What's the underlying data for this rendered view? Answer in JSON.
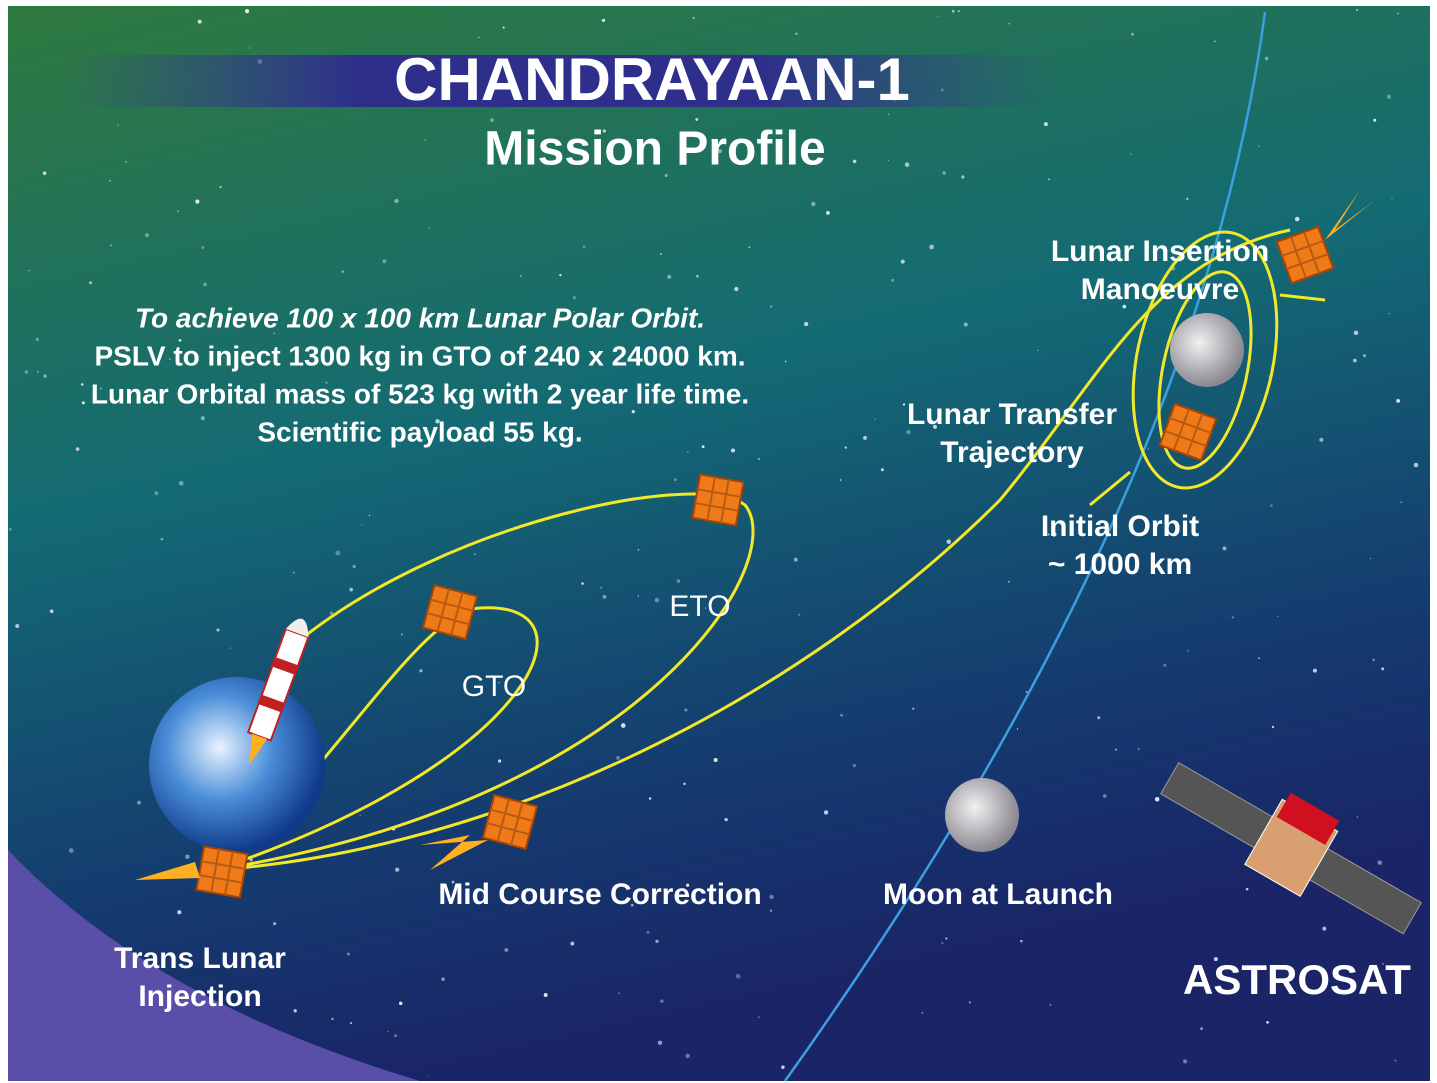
{
  "header": {
    "title": "CHANDRAYAAN-1",
    "subtitle": "Mission Profile"
  },
  "summary": [
    "To achieve 100 x 100 km Lunar Polar Orbit.",
    "PSLV to inject 1300 kg in GTO of 240 x 24000 km.",
    "Lunar Orbital mass of 523 kg with 2 year life time.",
    "Scientific payload  55 kg."
  ],
  "labels": {
    "lunar_insertion": [
      "Lunar Insertion",
      "Manoeuvre"
    ],
    "lunar_transfer": [
      "Lunar Transfer",
      "Trajectory"
    ],
    "initial_orbit": [
      "Initial Orbit",
      "~ 1000 km"
    ],
    "eto": "ETO",
    "gto": "GTO",
    "mid_course": "Mid Course Correction",
    "moon_at_launch": "Moon at Launch",
    "trans_lunar": [
      "Trans Lunar",
      "Injection"
    ],
    "astrosat": "ASTROSAT"
  }
}
